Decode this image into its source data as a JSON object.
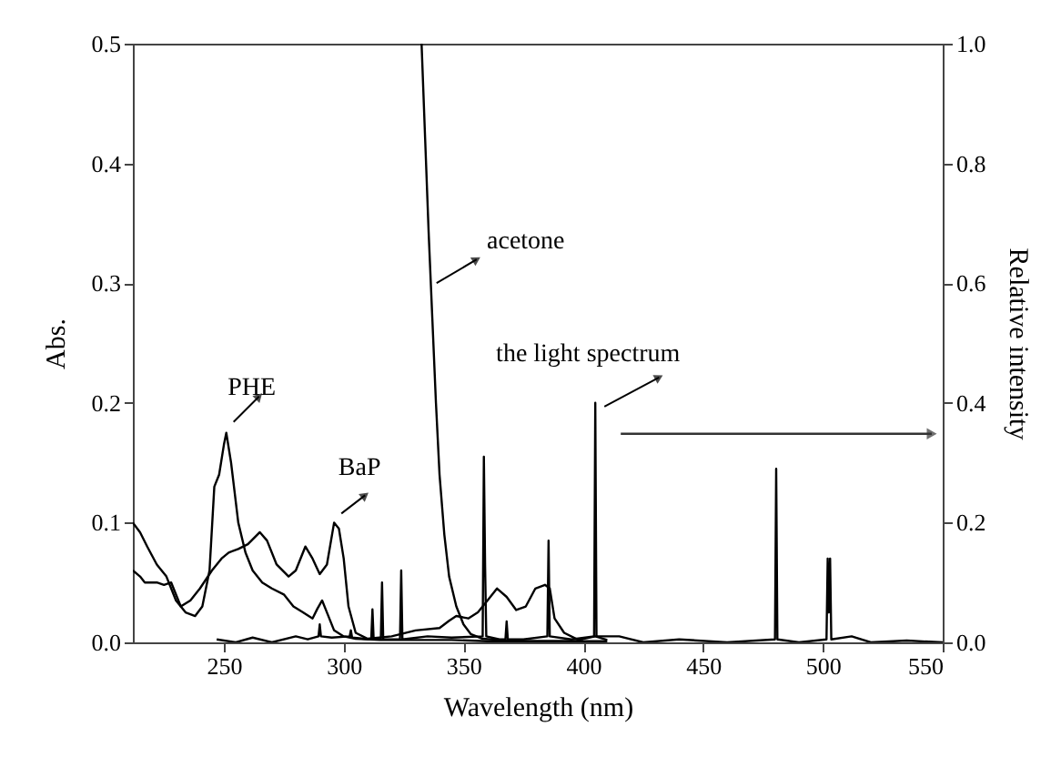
{
  "chart_data": {
    "type": "line",
    "xlabel": "Wavelength (nm)",
    "ylabel": "Abs.",
    "y2label": "Relative intensity",
    "xlim": [
      212,
      550
    ],
    "xticks": [
      250,
      300,
      350,
      400,
      450,
      500,
      550
    ],
    "ylim": [
      0,
      0.5
    ],
    "yticks": [
      {
        "value": 0,
        "label": "0.0"
      },
      0.1,
      0.2,
      0.3,
      0.4,
      0.5
    ],
    "y2lim": [
      0,
      1.0
    ],
    "y2ticks": [
      {
        "value": 0,
        "label": "0.0"
      },
      0.2,
      0.4,
      0.6,
      0.8,
      {
        "value": 1,
        "label": "1.0"
      }
    ],
    "grid": false,
    "marker": "none",
    "line_style": "solid",
    "series": [
      {
        "color": "#000000",
        "x": [
          212,
          215,
          218,
          222,
          226,
          230,
          234,
          238,
          241,
          244,
          246,
          248,
          250,
          251,
          253,
          256,
          259,
          262,
          266,
          270,
          275,
          279,
          283,
          287,
          289,
          291,
          293,
          296,
          300,
          305,
          315,
          330,
          345,
          360,
          380,
          400,
          410
        ],
        "values": [
          0.1,
          0.092,
          0.08,
          0.065,
          0.055,
          0.035,
          0.025,
          0.022,
          0.03,
          0.06,
          0.13,
          0.14,
          0.165,
          0.175,
          0.15,
          0.1,
          0.075,
          0.06,
          0.05,
          0.045,
          0.04,
          0.03,
          0.025,
          0.02,
          0.028,
          0.035,
          0.025,
          0.01,
          0.005,
          0.003,
          0.002,
          0.002,
          0.002,
          0.001,
          0.001,
          0.001,
          0.001
        ]
      },
      {
        "color": "#000000",
        "x": [
          212,
          215,
          217,
          222,
          225,
          228,
          232,
          236,
          240,
          245,
          249,
          252,
          256,
          260,
          265,
          268,
          272,
          277,
          280,
          284,
          287,
          290,
          293,
          296,
          298,
          300,
          302,
          305,
          310,
          320,
          330,
          340,
          344,
          347,
          352,
          356,
          360,
          364,
          368,
          372,
          376,
          380,
          384,
          386,
          388,
          392,
          398,
          405,
          410
        ],
        "values": [
          0.06,
          0.055,
          0.05,
          0.05,
          0.048,
          0.05,
          0.03,
          0.035,
          0.045,
          0.06,
          0.07,
          0.075,
          0.078,
          0.082,
          0.092,
          0.085,
          0.065,
          0.055,
          0.06,
          0.08,
          0.07,
          0.057,
          0.065,
          0.1,
          0.095,
          0.07,
          0.03,
          0.008,
          0.003,
          0.005,
          0.01,
          0.012,
          0.018,
          0.022,
          0.02,
          0.025,
          0.035,
          0.045,
          0.038,
          0.027,
          0.03,
          0.045,
          0.048,
          0.045,
          0.02,
          0.008,
          0.002,
          0.005,
          0.002
        ]
      },
      {
        "color": "#000000",
        "x": [
          332.5,
          334,
          335.5,
          337,
          338.5,
          340,
          342,
          344,
          347,
          350,
          353,
          358,
          365,
          375,
          390,
          400
        ],
        "values": [
          0.5,
          0.42,
          0.34,
          0.27,
          0.2,
          0.14,
          0.09,
          0.055,
          0.03,
          0.015,
          0.007,
          0.003,
          0.002,
          0.001,
          0.001,
          0.001
        ]
      },
      {
        "color": "#000000",
        "axis": "y2",
        "x": [
          247,
          255,
          262,
          270,
          280,
          285,
          289.5,
          290,
          290.5,
          295,
          302.5,
          303,
          303.5,
          311.5,
          312,
          312.5,
          315.5,
          316,
          316.5,
          323.5,
          324,
          324.5,
          335,
          345,
          358,
          358.5,
          359,
          359.5,
          365,
          367.5,
          368,
          368.5,
          375,
          385,
          385.5,
          386,
          395,
          404.5,
          405,
          405.5,
          415,
          425,
          440,
          460,
          480,
          480.5,
          481,
          490,
          501.5,
          502,
          502.5,
          503,
          503.5,
          512,
          520,
          535,
          550
        ],
        "values": [
          0.005,
          0.0,
          0.008,
          0.0,
          0.01,
          0.005,
          0.01,
          0.03,
          0.01,
          0.008,
          0.01,
          0.02,
          0.008,
          0.005,
          0.055,
          0.005,
          0.005,
          0.1,
          0.005,
          0.005,
          0.12,
          0.005,
          0.01,
          0.008,
          0.01,
          0.31,
          0.13,
          0.01,
          0.005,
          0.005,
          0.035,
          0.005,
          0.005,
          0.01,
          0.17,
          0.01,
          0.005,
          0.01,
          0.4,
          0.01,
          0.01,
          0.0,
          0.005,
          0.0,
          0.005,
          0.29,
          0.005,
          0.0,
          0.005,
          0.14,
          0.05,
          0.14,
          0.005,
          0.01,
          0.0,
          0.003,
          0.0
        ]
      }
    ],
    "annotations": [
      {
        "text": "PHE",
        "x": 251,
        "y": 0.175
      },
      {
        "text": "BaP",
        "x": 296,
        "y": 0.1
      },
      {
        "text": "acetone",
        "x": 338,
        "y": 0.3
      },
      "the light spectrum"
    ]
  }
}
